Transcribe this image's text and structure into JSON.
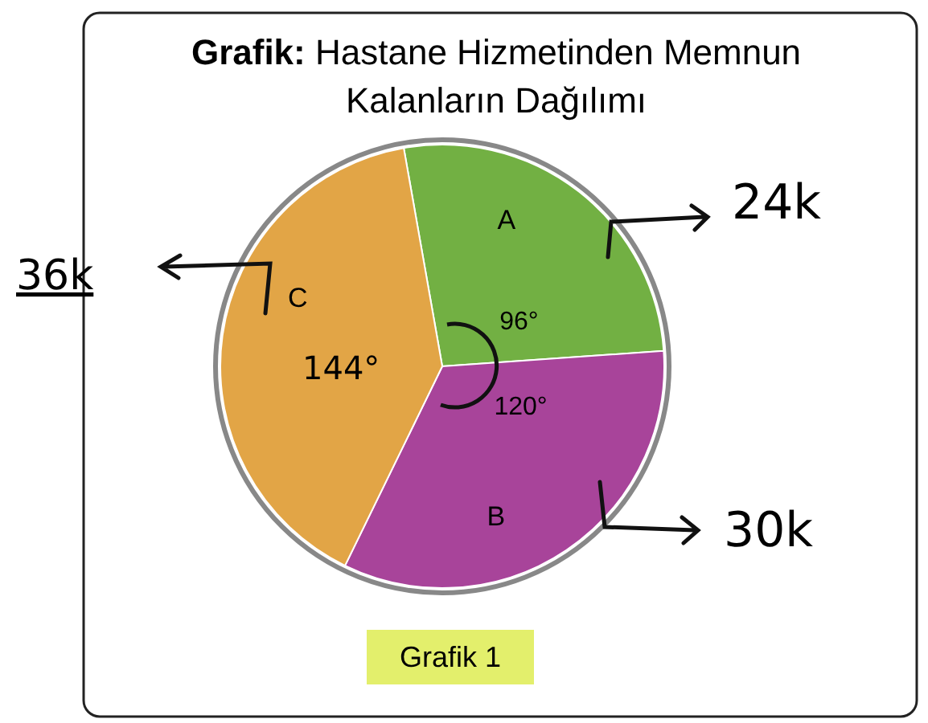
{
  "chart_data": {
    "type": "pie",
    "title": "Grafik: Hastane Hizmetinden Memnun Kalanların Dağılımı",
    "categories": [
      "A",
      "B",
      "C"
    ],
    "values": [
      96,
      120,
      144
    ],
    "colors": [
      "#72b043",
      "#a8449a",
      "#e2a546"
    ],
    "value_labels": [
      "96°",
      "120°",
      null
    ],
    "annotations": [
      "24k",
      "30k",
      "36k",
      "144°",
      "Grafik 1"
    ]
  }
}
